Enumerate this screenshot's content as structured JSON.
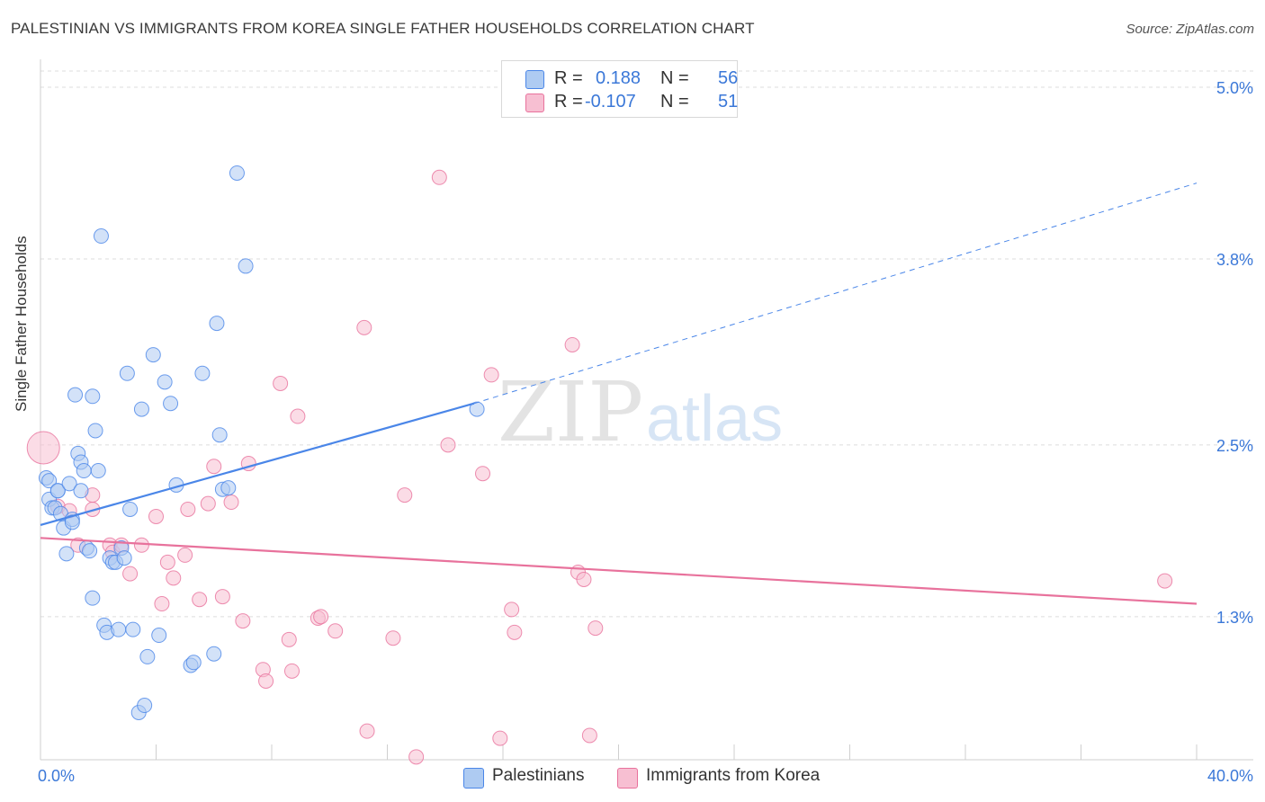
{
  "title": "PALESTINIAN VS IMMIGRANTS FROM KOREA SINGLE FATHER HOUSEHOLDS CORRELATION CHART",
  "source": "Source: ZipAtlas.com",
  "watermark": {
    "zip": "ZIP",
    "atlas": "atlas"
  },
  "legend_top": {
    "rows": [
      {
        "r_label": "R =",
        "r_value": "0.188",
        "n_label": "N =",
        "n_value": "56"
      },
      {
        "r_label": "R =",
        "r_value": "-0.107",
        "n_label": "N =",
        "n_value": "51"
      }
    ]
  },
  "legend_bottom": {
    "series_a": "Palestinians",
    "series_b": "Immigrants from Korea"
  },
  "chart_data": {
    "type": "scatter",
    "title": "PALESTINIAN VS IMMIGRANTS FROM KOREA SINGLE FATHER HOUSEHOLDS CORRELATION CHART",
    "xlabel": "",
    "ylabel": "Single Father Households",
    "xlim": [
      0,
      40
    ],
    "ylim": [
      0.3,
      5.2
    ],
    "x_ticks": [
      "0.0%",
      "40.0%"
    ],
    "y_ticks": [
      {
        "value": 1.3,
        "label": "1.3%"
      },
      {
        "value": 2.5,
        "label": "2.5%"
      },
      {
        "value": 3.8,
        "label": "3.8%"
      },
      {
        "value": 5.0,
        "label": "5.0%"
      }
    ],
    "grid": true,
    "legend": "bottom-center",
    "colors": {
      "series_a": "#4a86e8",
      "series_a_fill": "#aecbf2",
      "series_b": "#e8729c",
      "series_b_fill": "#f7bfd2"
    },
    "series": [
      {
        "name": "Palestinians",
        "R": 0.188,
        "N": 56,
        "trend": {
          "x0": 0,
          "y0": 1.94,
          "x1": 15,
          "y1": 2.79,
          "dash_x1": 40,
          "dash_y1": 4.33
        },
        "points": [
          [
            0.2,
            2.27
          ],
          [
            0.3,
            2.12
          ],
          [
            0.3,
            2.25
          ],
          [
            0.4,
            2.06
          ],
          [
            0.5,
            2.06
          ],
          [
            0.6,
            2.18
          ],
          [
            0.6,
            2.18
          ],
          [
            0.7,
            2.02
          ],
          [
            0.8,
            1.92
          ],
          [
            0.9,
            1.74
          ],
          [
            1.0,
            2.23
          ],
          [
            1.1,
            1.98
          ],
          [
            1.1,
            1.96
          ],
          [
            1.2,
            2.85
          ],
          [
            1.3,
            2.44
          ],
          [
            1.4,
            2.18
          ],
          [
            1.4,
            2.38
          ],
          [
            1.5,
            2.32
          ],
          [
            1.6,
            1.78
          ],
          [
            1.7,
            1.76
          ],
          [
            1.8,
            1.43
          ],
          [
            1.8,
            2.84
          ],
          [
            1.9,
            2.6
          ],
          [
            2.0,
            2.32
          ],
          [
            2.1,
            3.96
          ],
          [
            2.2,
            1.24
          ],
          [
            2.3,
            1.19
          ],
          [
            2.4,
            1.71
          ],
          [
            2.5,
            1.68
          ],
          [
            2.6,
            1.68
          ],
          [
            2.7,
            1.21
          ],
          [
            2.8,
            1.78
          ],
          [
            2.9,
            1.71
          ],
          [
            3.0,
            3.0
          ],
          [
            3.1,
            2.05
          ],
          [
            3.2,
            1.21
          ],
          [
            3.4,
            0.63
          ],
          [
            3.5,
            2.75
          ],
          [
            3.6,
            0.68
          ],
          [
            3.7,
            1.02
          ],
          [
            3.9,
            3.13
          ],
          [
            4.1,
            1.17
          ],
          [
            4.3,
            2.94
          ],
          [
            4.5,
            2.79
          ],
          [
            4.7,
            2.22
          ],
          [
            5.2,
            0.96
          ],
          [
            5.3,
            0.98
          ],
          [
            5.6,
            3.0
          ],
          [
            6.0,
            1.04
          ],
          [
            6.1,
            3.35
          ],
          [
            6.2,
            2.57
          ],
          [
            6.3,
            2.19
          ],
          [
            6.5,
            2.2
          ],
          [
            6.8,
            4.4
          ],
          [
            7.1,
            3.75
          ],
          [
            15.1,
            2.75
          ]
        ]
      },
      {
        "name": "Immigrants from Korea",
        "R": -0.107,
        "N": 51,
        "trend": {
          "x0": 0,
          "y0": 1.85,
          "x1": 40,
          "y1": 1.39
        },
        "points": [
          [
            0.1,
            2.48
          ],
          [
            0.6,
            2.07
          ],
          [
            1.0,
            2.04
          ],
          [
            1.3,
            1.8
          ],
          [
            1.8,
            2.05
          ],
          [
            1.8,
            2.15
          ],
          [
            2.4,
            1.8
          ],
          [
            2.5,
            1.75
          ],
          [
            2.8,
            1.8
          ],
          [
            3.1,
            1.6
          ],
          [
            3.5,
            1.8
          ],
          [
            4.0,
            2.0
          ],
          [
            4.2,
            1.39
          ],
          [
            4.4,
            1.68
          ],
          [
            4.6,
            1.57
          ],
          [
            5.0,
            1.73
          ],
          [
            5.1,
            2.05
          ],
          [
            5.5,
            1.42
          ],
          [
            5.8,
            2.09
          ],
          [
            6.0,
            2.35
          ],
          [
            6.3,
            1.44
          ],
          [
            6.6,
            2.1
          ],
          [
            7.0,
            1.27
          ],
          [
            7.2,
            2.37
          ],
          [
            7.7,
            0.93
          ],
          [
            7.8,
            0.85
          ],
          [
            8.3,
            2.93
          ],
          [
            8.6,
            1.14
          ],
          [
            8.7,
            0.92
          ],
          [
            8.9,
            2.7
          ],
          [
            9.6,
            1.29
          ],
          [
            9.7,
            1.3
          ],
          [
            10.2,
            1.2
          ],
          [
            11.2,
            3.32
          ],
          [
            11.3,
            0.5
          ],
          [
            12.2,
            1.15
          ],
          [
            12.6,
            2.15
          ],
          [
            13.0,
            0.32
          ],
          [
            13.8,
            4.37
          ],
          [
            14.1,
            2.5
          ],
          [
            15.3,
            2.3
          ],
          [
            15.6,
            2.99
          ],
          [
            15.9,
            0.45
          ],
          [
            16.3,
            1.35
          ],
          [
            16.4,
            1.19
          ],
          [
            18.4,
            3.2
          ],
          [
            18.6,
            1.61
          ],
          [
            18.8,
            1.56
          ],
          [
            19.0,
            0.47
          ],
          [
            19.2,
            1.22
          ],
          [
            38.9,
            1.55
          ]
        ]
      }
    ]
  }
}
